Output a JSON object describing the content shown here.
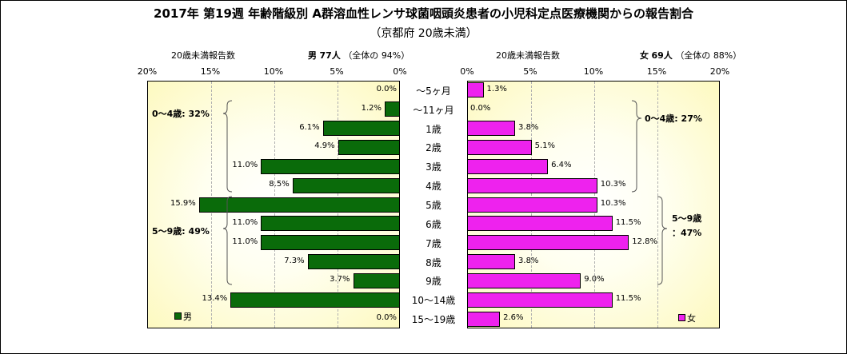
{
  "title": "2017年 第19週 年齢階級別 A群溶血性レンサ球菌咽頭炎患者の小児科定点医療機関からの報告割合",
  "subtitle": "（京都府 20歳未満）",
  "male_header": {
    "axis_label": "20歳未満報告数",
    "sex": "男",
    "count": "77人",
    "share_label": "（全体の",
    "share_value": "94%）"
  },
  "female_header": {
    "axis_label": "20歳未満報告数",
    "sex": "女",
    "count": "69人",
    "share_label": "（全体の",
    "share_value": "88%）"
  },
  "groups": {
    "male_0_4": "0～4歳: 32%",
    "male_5_9": "5～9歳: 49%",
    "female_0_4": "0～4歳: 27%",
    "female_5_9_a": "5～9歳",
    "female_5_9_b": "：47%"
  },
  "legend": {
    "male": "男",
    "female": "女"
  },
  "colors": {
    "male": "#0a6b0a",
    "female": "#ee22ee"
  },
  "chart_data": {
    "type": "bar",
    "orientation": "horizontal-population-pyramid",
    "categories": [
      "～5ヶ月",
      "～11ヶ月",
      "1歳",
      "2歳",
      "3歳",
      "4歳",
      "5歳",
      "6歳",
      "7歳",
      "8歳",
      "9歳",
      "10～14歳",
      "15～19歳"
    ],
    "series": [
      {
        "name": "男",
        "values": [
          0.0,
          1.2,
          6.1,
          4.9,
          11.0,
          8.5,
          15.9,
          11.0,
          11.0,
          7.3,
          3.7,
          13.4,
          0.0
        ],
        "labels": [
          "0.0%",
          "1.2%",
          "6.1%",
          "4.9%",
          "11.0%",
          "8.5%",
          "15.9%",
          "11.0%",
          "11.0%",
          "7.3%",
          "3.7%",
          "13.4%",
          "0.0%"
        ]
      },
      {
        "name": "女",
        "values": [
          1.3,
          0.0,
          3.8,
          5.1,
          6.4,
          10.3,
          10.3,
          11.5,
          12.8,
          3.8,
          9.0,
          11.5,
          2.6
        ],
        "labels": [
          "1.3%",
          "0.0%",
          "3.8%",
          "5.1%",
          "6.4%",
          "10.3%",
          "10.3%",
          "11.5%",
          "12.8%",
          "3.8%",
          "9.0%",
          "11.5%",
          "2.6%"
        ]
      }
    ],
    "male_ticks": [
      "20%",
      "15%",
      "10%",
      "5%",
      "0%"
    ],
    "female_ticks": [
      "0%",
      "5%",
      "10%",
      "15%",
      "20%"
    ],
    "xlim": [
      0,
      20
    ],
    "grid": true,
    "legend": "bottom-inside"
  }
}
